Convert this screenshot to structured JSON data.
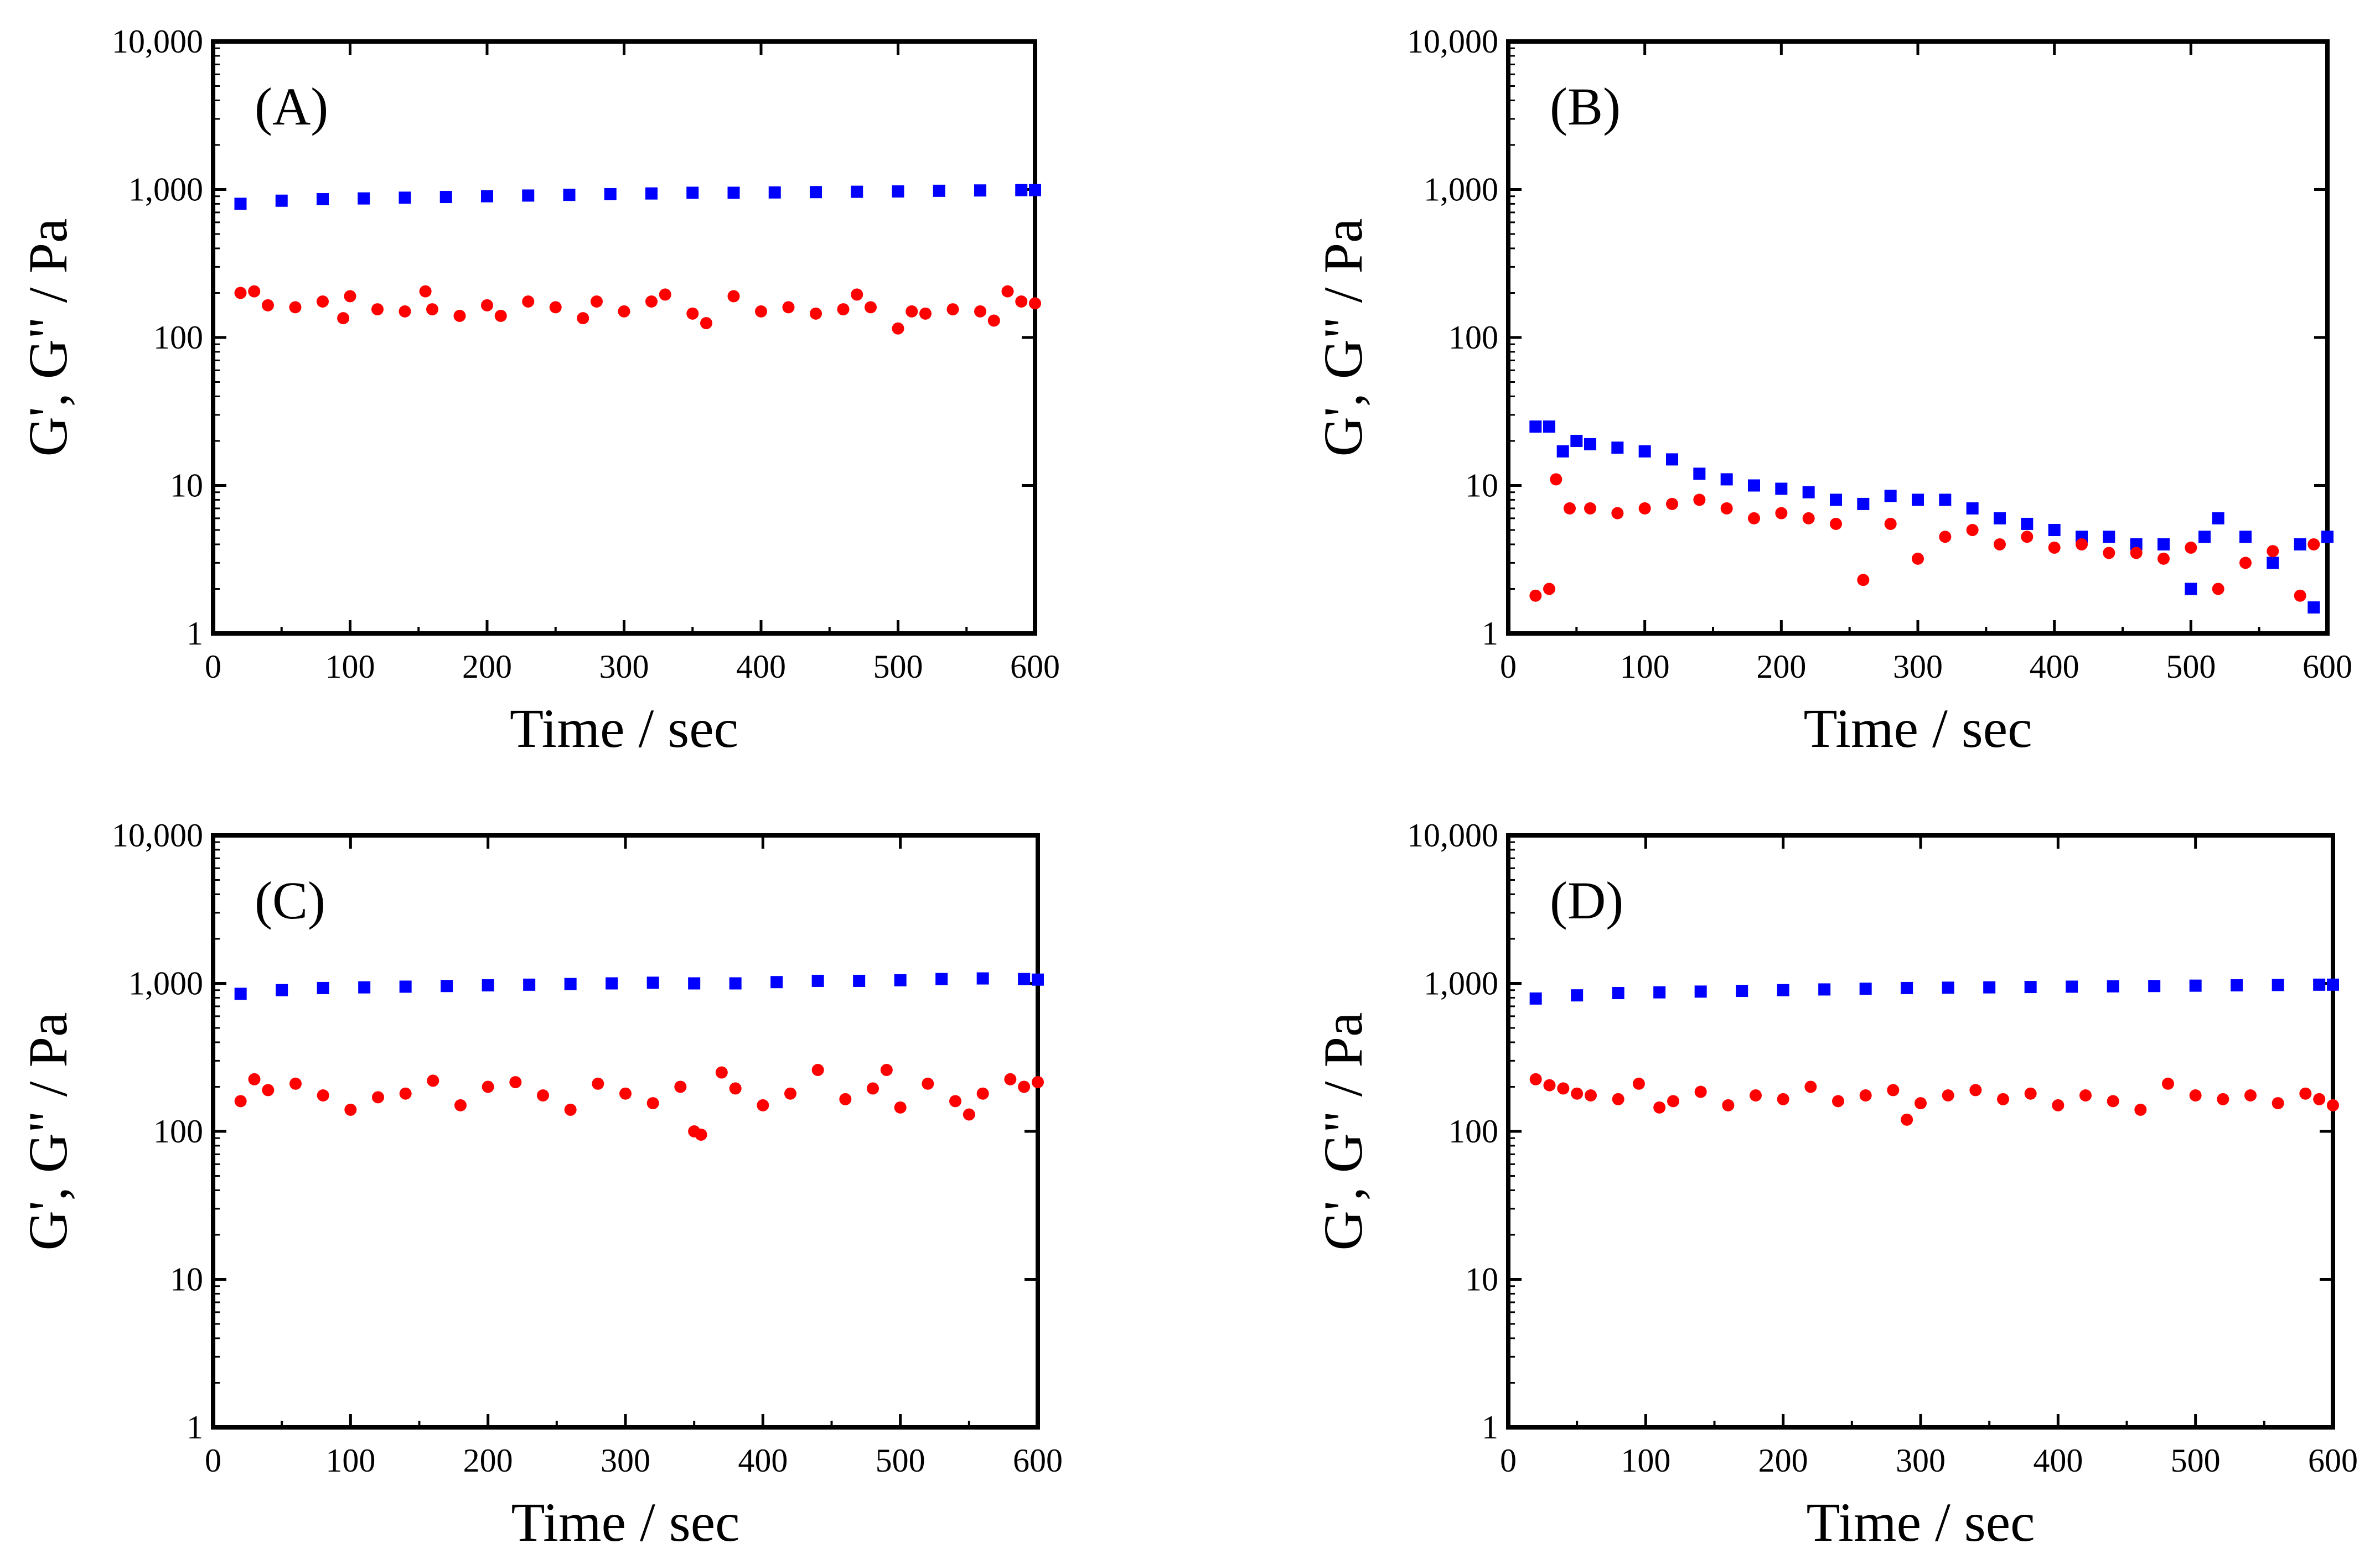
{
  "colors": {
    "g_prime": "#0000ff",
    "g_double_prime": "#ff0000",
    "axes": "#000000"
  },
  "chart_data": [
    {
      "type": "scatter",
      "panel_label": "(A)",
      "xlabel": "Time / sec",
      "ylabel": "G', G\" / Pa",
      "xlim": [
        0,
        600
      ],
      "ylim": [
        1,
        10000
      ],
      "yscale": "log",
      "x_ticks": [
        0,
        100,
        200,
        300,
        400,
        500,
        600
      ],
      "x_tick_labels": [
        "0",
        "100",
        "200",
        "300",
        "400",
        "500",
        "600"
      ],
      "y_ticks": [
        1,
        10,
        100,
        1000,
        10000
      ],
      "y_tick_labels": [
        "1",
        "10",
        "100",
        "1,000",
        "10,000"
      ],
      "grid": false,
      "series": [
        {
          "marker": "square",
          "color": "#0000ff",
          "x": [
            20,
            50,
            80,
            110,
            140,
            170,
            200,
            230,
            260,
            290,
            320,
            350,
            380,
            410,
            440,
            470,
            500,
            530,
            560,
            590,
            600
          ],
          "y": [
            800,
            840,
            860,
            870,
            880,
            890,
            900,
            910,
            920,
            930,
            940,
            950,
            950,
            955,
            960,
            965,
            970,
            980,
            985,
            990,
            990
          ]
        },
        {
          "marker": "circle",
          "color": "#ff0000",
          "x": [
            20,
            30,
            40,
            60,
            80,
            95,
            100,
            120,
            140,
            155,
            160,
            180,
            200,
            210,
            230,
            250,
            270,
            280,
            300,
            320,
            330,
            350,
            360,
            380,
            400,
            420,
            440,
            460,
            470,
            480,
            500,
            510,
            520,
            540,
            560,
            570,
            580,
            590,
            600
          ],
          "y": [
            200,
            205,
            165,
            160,
            175,
            135,
            190,
            155,
            150,
            205,
            155,
            140,
            165,
            140,
            175,
            160,
            135,
            175,
            150,
            175,
            195,
            145,
            125,
            190,
            150,
            160,
            145,
            155,
            195,
            160,
            115,
            150,
            145,
            155,
            150,
            130,
            205,
            175,
            170
          ]
        }
      ]
    },
    {
      "type": "scatter",
      "panel_label": "(B)",
      "xlabel": "Time / sec",
      "ylabel": "G', G\" / Pa",
      "xlim": [
        0,
        600
      ],
      "ylim": [
        1,
        10000
      ],
      "yscale": "log",
      "x_ticks": [
        0,
        100,
        200,
        300,
        400,
        500,
        600
      ],
      "x_tick_labels": [
        "0",
        "100",
        "200",
        "300",
        "400",
        "500",
        "600"
      ],
      "y_ticks": [
        1,
        10,
        100,
        1000,
        10000
      ],
      "y_tick_labels": [
        "1",
        "10",
        "100",
        "1,000",
        "10,000"
      ],
      "grid": false,
      "series": [
        {
          "marker": "square",
          "color": "#0000ff",
          "x": [
            20,
            30,
            40,
            50,
            60,
            80,
            100,
            120,
            140,
            160,
            180,
            200,
            220,
            240,
            260,
            280,
            300,
            320,
            340,
            360,
            380,
            400,
            420,
            440,
            460,
            480,
            500,
            510,
            520,
            540,
            560,
            580,
            590,
            600
          ],
          "y": [
            25,
            25,
            17,
            20,
            19,
            18,
            17,
            15,
            12,
            11,
            10,
            9.5,
            9,
            8,
            7.5,
            8.5,
            8,
            8,
            7,
            6,
            5.5,
            5,
            4.5,
            4.5,
            4,
            4,
            2,
            4.5,
            6,
            4.5,
            3,
            4,
            1.5,
            4.5
          ]
        },
        {
          "marker": "circle",
          "color": "#ff0000",
          "x": [
            20,
            30,
            35,
            45,
            60,
            80,
            100,
            120,
            140,
            160,
            180,
            200,
            220,
            240,
            260,
            280,
            300,
            320,
            340,
            360,
            380,
            400,
            420,
            440,
            460,
            480,
            500,
            520,
            540,
            560,
            580,
            590
          ],
          "y": [
            1.8,
            2,
            11,
            7,
            7,
            6.5,
            7,
            7.5,
            8,
            7,
            6,
            6.5,
            6,
            5.5,
            2.3,
            5.5,
            3.2,
            4.5,
            5,
            4,
            4.5,
            3.8,
            4,
            3.5,
            3.5,
            3.2,
            3.8,
            2,
            3,
            3.6,
            1.8,
            4
          ]
        }
      ]
    },
    {
      "type": "scatter",
      "panel_label": "(C)",
      "xlabel": "Time / sec",
      "ylabel": "G', G\" / Pa",
      "xlim": [
        0,
        600
      ],
      "ylim": [
        1,
        10000
      ],
      "yscale": "log",
      "x_ticks": [
        0,
        100,
        200,
        300,
        400,
        500,
        600
      ],
      "x_tick_labels": [
        "0",
        "100",
        "200",
        "300",
        "400",
        "500",
        "600"
      ],
      "y_ticks": [
        1,
        10,
        100,
        1000,
        10000
      ],
      "y_tick_labels": [
        "1",
        "10",
        "100",
        "1,000",
        "10,000"
      ],
      "grid": false,
      "series": [
        {
          "marker": "square",
          "color": "#0000ff",
          "x": [
            20,
            50,
            80,
            110,
            140,
            170,
            200,
            230,
            260,
            290,
            320,
            350,
            380,
            410,
            440,
            470,
            500,
            530,
            560,
            590,
            600
          ],
          "y": [
            850,
            900,
            930,
            940,
            950,
            960,
            970,
            980,
            990,
            1000,
            1010,
            1000,
            1000,
            1020,
            1040,
            1040,
            1050,
            1070,
            1080,
            1070,
            1060
          ]
        },
        {
          "marker": "circle",
          "color": "#ff0000",
          "x": [
            20,
            30,
            40,
            60,
            80,
            100,
            120,
            140,
            160,
            180,
            200,
            220,
            240,
            260,
            280,
            300,
            320,
            340,
            350,
            355,
            370,
            380,
            400,
            420,
            440,
            460,
            480,
            490,
            500,
            520,
            540,
            550,
            560,
            580,
            590,
            600
          ],
          "y": [
            160,
            225,
            190,
            210,
            175,
            140,
            170,
            180,
            220,
            150,
            200,
            215,
            175,
            140,
            210,
            180,
            155,
            200,
            100,
            95,
            250,
            195,
            150,
            180,
            260,
            165,
            195,
            260,
            145,
            210,
            160,
            130,
            180,
            225,
            200,
            215
          ]
        }
      ]
    },
    {
      "type": "scatter",
      "panel_label": "(D)",
      "xlabel": "Time / sec",
      "ylabel": "G', G\" / Pa",
      "xlim": [
        0,
        600
      ],
      "ylim": [
        1,
        10000
      ],
      "yscale": "log",
      "x_ticks": [
        0,
        100,
        200,
        300,
        400,
        500,
        600
      ],
      "x_tick_labels": [
        "0",
        "100",
        "200",
        "300",
        "400",
        "500",
        "600"
      ],
      "y_ticks": [
        1,
        10,
        100,
        1000,
        10000
      ],
      "y_tick_labels": [
        "1",
        "10",
        "100",
        "1,000",
        "10,000"
      ],
      "grid": false,
      "series": [
        {
          "marker": "square",
          "color": "#0000ff",
          "x": [
            20,
            50,
            80,
            110,
            140,
            170,
            200,
            230,
            260,
            290,
            320,
            350,
            380,
            410,
            440,
            470,
            500,
            530,
            560,
            590,
            600
          ],
          "y": [
            790,
            830,
            860,
            870,
            880,
            890,
            900,
            910,
            920,
            930,
            935,
            940,
            945,
            950,
            955,
            960,
            965,
            970,
            975,
            980,
            980
          ]
        },
        {
          "marker": "circle",
          "color": "#ff0000",
          "x": [
            20,
            30,
            40,
            50,
            60,
            80,
            95,
            110,
            120,
            140,
            160,
            180,
            200,
            220,
            240,
            260,
            280,
            290,
            300,
            320,
            340,
            360,
            380,
            400,
            420,
            440,
            460,
            480,
            500,
            520,
            540,
            560,
            580,
            590,
            600
          ],
          "y": [
            225,
            205,
            195,
            180,
            175,
            165,
            210,
            145,
            160,
            185,
            150,
            175,
            165,
            200,
            160,
            175,
            190,
            120,
            155,
            175,
            190,
            165,
            180,
            150,
            175,
            160,
            140,
            210,
            175,
            165,
            175,
            155,
            180,
            165,
            150
          ]
        }
      ]
    }
  ]
}
